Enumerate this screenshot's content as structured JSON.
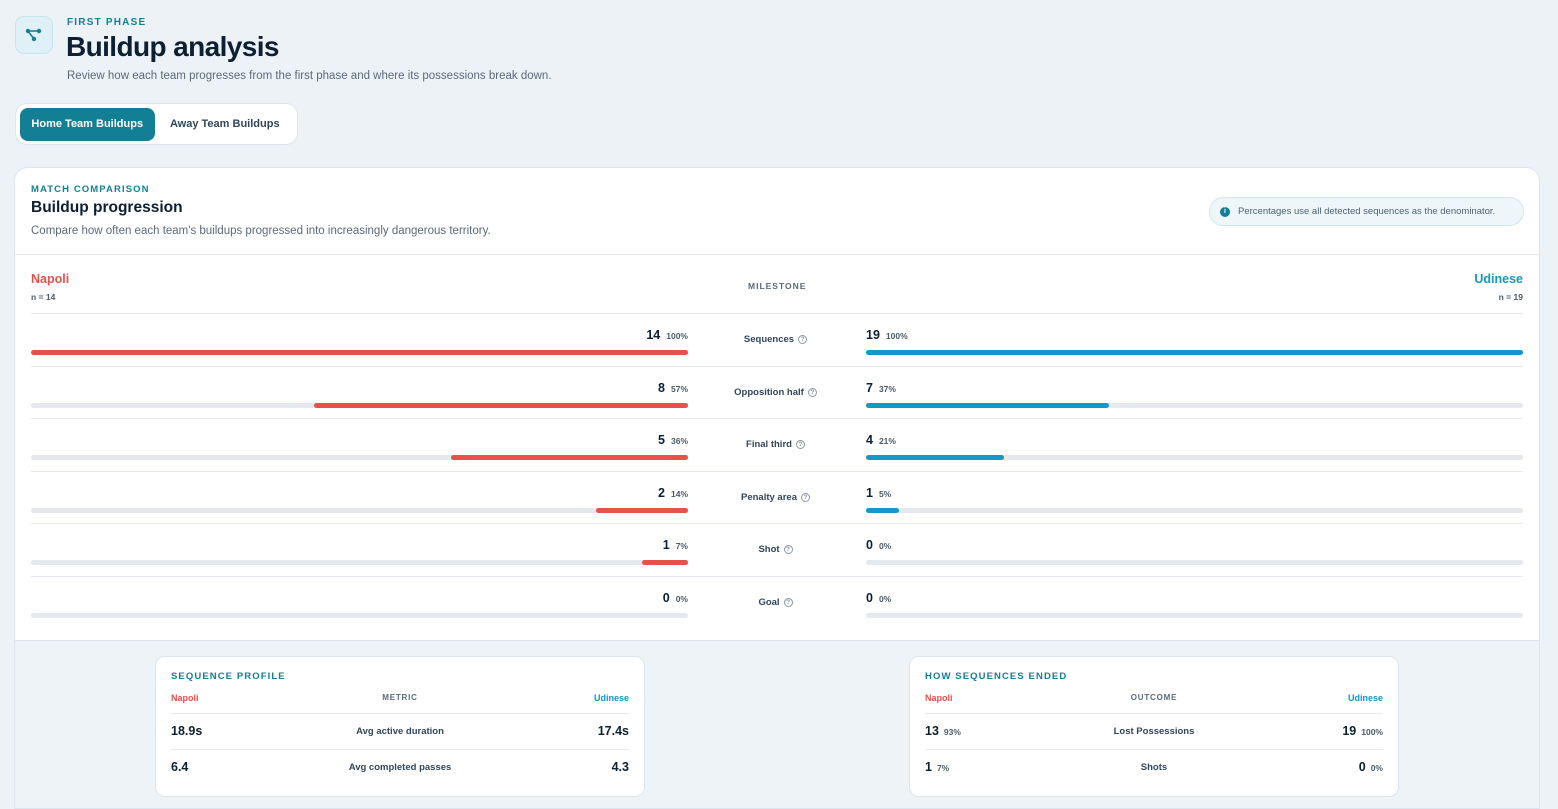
{
  "header": {
    "icon": "network-icon",
    "eyebrow": "FIRST PHASE",
    "title": "Buildup analysis",
    "subtitle": "Review how each team progresses from the first phase and where its possessions break down."
  },
  "tabs": [
    {
      "label": "Home Team Buildups",
      "active": true
    },
    {
      "label": "Away Team Buildups",
      "active": false
    }
  ],
  "comparison": {
    "eyebrow": "MATCH COMPARISON",
    "title": "Buildup progression",
    "subtitle": "Compare how often each team's buildups progressed into increasingly dangerous territory.",
    "note": "Percentages use all detected sequences as the denominator.",
    "milestone_header": "MILESTONE",
    "home": {
      "name": "Napoli",
      "n": "n = 14",
      "color": "#e8504a"
    },
    "away": {
      "name": "Udinese",
      "n": "n = 19",
      "color": "#1398c9"
    },
    "rows": [
      {
        "label": "Sequences",
        "home_count": "14",
        "home_pct": "100%",
        "home_frac": 1.0,
        "away_count": "19",
        "away_pct": "100%",
        "away_frac": 1.0
      },
      {
        "label": "Opposition half",
        "home_count": "8",
        "home_pct": "57%",
        "home_frac": 0.57,
        "away_count": "7",
        "away_pct": "37%",
        "away_frac": 0.37
      },
      {
        "label": "Final third",
        "home_count": "5",
        "home_pct": "36%",
        "home_frac": 0.36,
        "away_count": "4",
        "away_pct": "21%",
        "away_frac": 0.21
      },
      {
        "label": "Penalty area",
        "home_count": "2",
        "home_pct": "14%",
        "home_frac": 0.14,
        "away_count": "1",
        "away_pct": "5%",
        "away_frac": 0.05
      },
      {
        "label": "Shot",
        "home_count": "1",
        "home_pct": "7%",
        "home_frac": 0.07,
        "away_count": "0",
        "away_pct": "0%",
        "away_frac": 0.0
      },
      {
        "label": "Goal",
        "home_count": "0",
        "home_pct": "0%",
        "home_frac": 0.0,
        "away_count": "0",
        "away_pct": "0%",
        "away_frac": 0.0
      }
    ]
  },
  "sequence_profile": {
    "title": "SEQUENCE PROFILE",
    "home_label": "Napoli",
    "center_label": "METRIC",
    "away_label": "Udinese",
    "rows": [
      {
        "label": "Avg active duration",
        "home": "18.9s",
        "away": "17.4s"
      },
      {
        "label": "Avg completed passes",
        "home": "6.4",
        "away": "4.3"
      }
    ]
  },
  "sequence_end": {
    "title": "HOW SEQUENCES ENDED",
    "home_label": "Napoli",
    "center_label": "OUTCOME",
    "away_label": "Udinese",
    "rows": [
      {
        "label": "Lost Possessions",
        "home": "13",
        "home_pct": "93%",
        "away": "19",
        "away_pct": "100%"
      },
      {
        "label": "Shots",
        "home": "1",
        "home_pct": "7%",
        "away": "0",
        "away_pct": "0%"
      }
    ]
  }
}
